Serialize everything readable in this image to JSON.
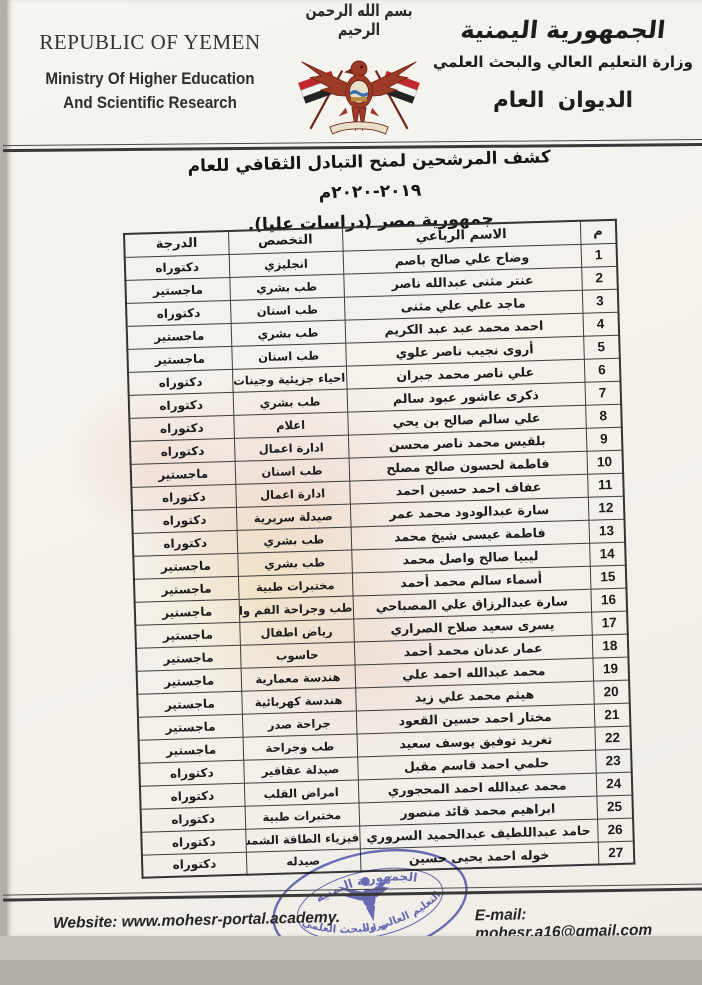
{
  "header": {
    "english": {
      "line1": "REPUBLIC OF YEMEN",
      "line2": "Ministry Of  Higher Education",
      "line3": "And Scientific Research"
    },
    "bismillah": "بسم الله الرحمن الرحيم",
    "arabic": {
      "country": "الجمهورية اليمنية",
      "ministry": "وزارة التعليم العالي والبحث العلمي",
      "office": "الديوان العام"
    }
  },
  "title": {
    "line1": "كشف المرشحين لمنح التبادل الثقافي  للعام ٢٠١٩-٢٠٢٠م",
    "line2": "جمهورية مصر (دراسات عليا)."
  },
  "table": {
    "headers": {
      "no": "م",
      "name": "الاسم الرباعي",
      "specialty": "التخصص",
      "degree": "الدرجة"
    },
    "rows": [
      {
        "no": "1",
        "name": "وضاح علي صالح باصم",
        "specialty": "انجليزي",
        "degree": "دكتوراه"
      },
      {
        "no": "2",
        "name": "عنتر مثنى عبدالله ناصر",
        "specialty": "طب بشري",
        "degree": "ماجستير"
      },
      {
        "no": "3",
        "name": "ماجد علي علي مثنى",
        "specialty": "طب اسنان",
        "degree": "دكتوراه"
      },
      {
        "no": "4",
        "name": "احمد محمد عبد عبد الكريم",
        "specialty": "طب بشري",
        "degree": "ماجستير"
      },
      {
        "no": "5",
        "name": "أروى نجيب ناصر علوي",
        "specialty": "طب اسنان",
        "degree": "ماجستير"
      },
      {
        "no": "6",
        "name": "علي ناصر محمد جبران",
        "specialty": "احياء جزيئية وجينات",
        "degree": "دكتوراه"
      },
      {
        "no": "7",
        "name": "ذكرى عاشور عبود سالم",
        "specialty": "طب بشري",
        "degree": "دكتوراه"
      },
      {
        "no": "8",
        "name": "علي سالم صالح بن يحي",
        "specialty": "اعلام",
        "degree": "دكتوراه"
      },
      {
        "no": "9",
        "name": "بلقيس محمد ناصر محسن",
        "specialty": "ادارة اعمال",
        "degree": "دكتوراه"
      },
      {
        "no": "10",
        "name": "فاطمة لحسون صالح مصلح",
        "specialty": "طب اسنان",
        "degree": "ماجستير"
      },
      {
        "no": "11",
        "name": "عفاف احمد حسين احمد",
        "specialty": "ادارة اعمال",
        "degree": "دكتوراه"
      },
      {
        "no": "12",
        "name": "سارة عبدالودود محمد عمر",
        "specialty": "صيدلة سريرية",
        "degree": "دكتوراه"
      },
      {
        "no": "13",
        "name": "فاطمة عيسى شيخ محمد",
        "specialty": "طب بشري",
        "degree": "دكتوراه"
      },
      {
        "no": "14",
        "name": "ليبيا صالح واصل محمد",
        "specialty": "طب بشري",
        "degree": "ماجستير"
      },
      {
        "no": "15",
        "name": "أسماء سالم محمد أحمد",
        "specialty": "مختبرات طبية",
        "degree": "ماجستير"
      },
      {
        "no": "16",
        "name": "سارة عبدالرزاق علي المصباحي",
        "specialty": "طب وجراحة الفم والاسنان",
        "degree": "ماجستير"
      },
      {
        "no": "17",
        "name": "يسرى سعيد صلاح الصراري",
        "specialty": "رياض اطفال",
        "degree": "ماجستير"
      },
      {
        "no": "18",
        "name": "عمار عدنان محمد أحمد",
        "specialty": "حاسوب",
        "degree": "ماجستير"
      },
      {
        "no": "19",
        "name": "محمد عبدالله احمد علي",
        "specialty": "هندسة معمارية",
        "degree": "ماجستير"
      },
      {
        "no": "20",
        "name": "هيثم محمد علي زيد",
        "specialty": "هندسة كهربائية",
        "degree": "ماجستير"
      },
      {
        "no": "21",
        "name": "مختار احمد حسين القعود",
        "specialty": "جراحة صدر",
        "degree": "ماجستير"
      },
      {
        "no": "22",
        "name": "تغريد توفيق يوسف سعيد",
        "specialty": "طب وجراحة",
        "degree": "ماجستير"
      },
      {
        "no": "23",
        "name": "حلمي احمد قاسم مقبل",
        "specialty": "صيدلة عقاقير",
        "degree": "دكتوراه"
      },
      {
        "no": "24",
        "name": "محمد عبدالله احمد المحجوري",
        "specialty": "امراض القلب",
        "degree": "دكتوراه"
      },
      {
        "no": "25",
        "name": "ابراهيم محمد قائد منصور",
        "specialty": "مختبرات طبية",
        "degree": "دكتوراه"
      },
      {
        "no": "26",
        "name": "حامد عبداللطيف عبدالحميد السروري",
        "specialty": "فيزياء الطاقة الشمسية",
        "degree": "دكتوراه"
      },
      {
        "no": "27",
        "name": "خوله احمد يحيى حسين",
        "specialty": "صيدله",
        "degree": "دكتوراه"
      }
    ]
  },
  "stamp": {
    "top_text": "الجمهورية اليمنية",
    "middle_text": "وزارة",
    "bottom_text": "التعليم العالي والبحث العلمي"
  },
  "footer": {
    "website": "Website: www.mohesr-portal.academy.",
    "email": "E-mail: mohesr.a16@gmail.com"
  },
  "colors": {
    "emblem_brick": "#9e3b26",
    "flag_red": "#c1272d",
    "flag_black": "#232323",
    "stamp_blue": "#5a5ebd",
    "ink": "#1c1c1c"
  }
}
